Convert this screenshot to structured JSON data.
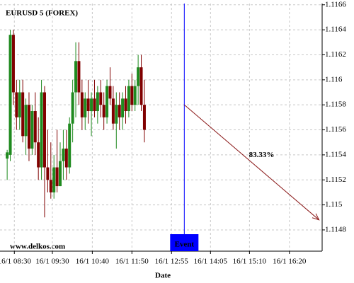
{
  "chart_data": {
    "type": "candlestick",
    "title": "EURUSD 5 (FOREX)",
    "watermark": "www.delkos.com",
    "x_label": "Date",
    "x": [
      0,
      1,
      2,
      3,
      4,
      5,
      6,
      7,
      8,
      9,
      10,
      11,
      12,
      13,
      14,
      15,
      16,
      17,
      18,
      19,
      20,
      21,
      22,
      23,
      24,
      25,
      26,
      27,
      28,
      29,
      30,
      31,
      32,
      33,
      34,
      35,
      36,
      37,
      38,
      39,
      40,
      41,
      42,
      43,
      44
    ],
    "open": [
      1.11537,
      1.1154,
      1.11636,
      1.1159,
      1.1157,
      1.1159,
      1.11555,
      1.1158,
      1.11545,
      1.11575,
      1.1155,
      1.1153,
      1.1159,
      1.1153,
      1.1152,
      1.1151,
      1.1153,
      1.11515,
      1.11535,
      1.11545,
      1.1153,
      1.11565,
      1.1159,
      1.11615,
      1.1159,
      1.1157,
      1.11585,
      1.11575,
      1.11585,
      1.11575,
      1.1159,
      1.1158,
      1.1157,
      1.11595,
      1.11585,
      1.11565,
      1.1158,
      1.1157,
      1.11585,
      1.11575,
      1.11595,
      1.1158,
      1.11595,
      1.1161,
      1.1158
    ],
    "high": [
      1.11544,
      1.1164,
      1.1164,
      1.116,
      1.116,
      1.116,
      1.11585,
      1.1159,
      1.1158,
      1.1159,
      1.1157,
      1.116,
      1.11595,
      1.1156,
      1.1155,
      1.1154,
      1.1156,
      1.1155,
      1.1156,
      1.1156,
      1.1157,
      1.116,
      1.1163,
      1.1163,
      1.116,
      1.1159,
      1.116,
      1.1159,
      1.116,
      1.11595,
      1.116,
      1.1159,
      1.116,
      1.1161,
      1.11595,
      1.1159,
      1.1159,
      1.1159,
      1.11595,
      1.116,
      1.11605,
      1.116,
      1.1162,
      1.1162,
      1.116
    ],
    "low": [
      1.1152,
      1.11535,
      1.1158,
      1.1156,
      1.1156,
      1.1155,
      1.1154,
      1.11535,
      1.1154,
      1.1154,
      1.1152,
      1.1152,
      1.1149,
      1.1151,
      1.11505,
      1.11505,
      1.1151,
      1.11515,
      1.1152,
      1.1152,
      1.11525,
      1.1155,
      1.1157,
      1.1158,
      1.1156,
      1.1156,
      1.11565,
      1.11555,
      1.1157,
      1.11565,
      1.1157,
      1.1156,
      1.11565,
      1.1158,
      1.1156,
      1.11545,
      1.1156,
      1.1156,
      1.11565,
      1.1157,
      1.11575,
      1.11575,
      1.1158,
      1.11575,
      1.1155
    ],
    "close": [
      1.11542,
      1.11636,
      1.1159,
      1.1157,
      1.1159,
      1.11555,
      1.1158,
      1.11545,
      1.11575,
      1.1155,
      1.1153,
      1.1159,
      1.1153,
      1.1152,
      1.1151,
      1.1153,
      1.11515,
      1.11535,
      1.11545,
      1.1153,
      1.11565,
      1.1159,
      1.11615,
      1.1159,
      1.1157,
      1.11585,
      1.11575,
      1.11585,
      1.11575,
      1.1159,
      1.1158,
      1.1157,
      1.11595,
      1.11585,
      1.11565,
      1.1158,
      1.1157,
      1.11585,
      1.11575,
      1.11595,
      1.1158,
      1.11595,
      1.1161,
      1.1158,
      1.1156
    ],
    "up_color": "#1f8a1f",
    "down_color": "#800000",
    "xlim": [
      -2.3,
      101
    ],
    "xticks": [
      {
        "value": 2.3,
        "label": "16/1 08:30"
      },
      {
        "value": 14.5,
        "label": "16/1 09:30"
      },
      {
        "value": 27.3,
        "label": "16/1 10:40"
      },
      {
        "value": 40,
        "label": "16/1 11:50"
      },
      {
        "value": 52.7,
        "label": "16/1 12:55"
      },
      {
        "value": 65.2,
        "label": "16/1 14:05"
      },
      {
        "value": 77.7,
        "label": "16/1 15:10"
      },
      {
        "value": 90.5,
        "label": "16/1 16:20"
      }
    ],
    "ylim": [
      1.11463,
      1.11661
    ],
    "yticks": [
      1.1148,
      1.115,
      1.1152,
      1.1154,
      1.1156,
      1.1158,
      1.116,
      1.1162,
      1.1164,
      1.1166
    ],
    "grid": true,
    "event": {
      "label": "Event",
      "x": 56.8,
      "color": "#0000ff"
    },
    "forecast": {
      "label": "83.33%",
      "x": [
        56.8,
        100
      ],
      "y": [
        1.1158,
        1.11488
      ],
      "color": "#8b1a1a"
    }
  }
}
